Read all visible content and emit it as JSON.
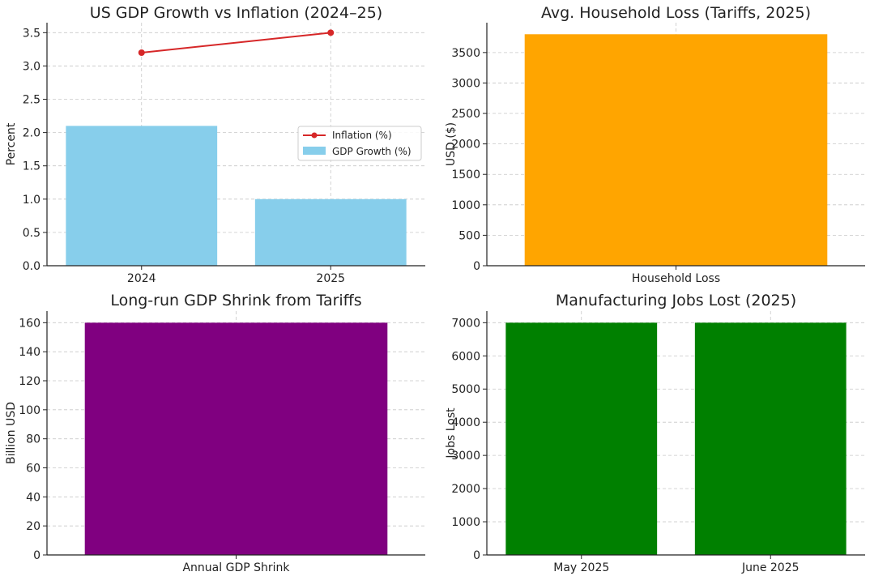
{
  "chart_data": [
    {
      "type": "bar+line",
      "title": "US GDP Growth vs Inflation (2024–25)",
      "xlabel": "",
      "ylabel": "Percent",
      "ylim": [
        0,
        3.65
      ],
      "yticks": [
        0.0,
        0.5,
        1.0,
        1.5,
        2.0,
        2.5,
        3.0,
        3.5
      ],
      "ytick_labels": [
        "0.0",
        "0.5",
        "1.0",
        "1.5",
        "2.0",
        "2.5",
        "3.0",
        "3.5"
      ],
      "categories": [
        "2024",
        "2025"
      ],
      "series": [
        {
          "name": "GDP Growth (%)",
          "kind": "bar",
          "values": [
            2.1,
            1.0
          ],
          "color": "#87CEEB"
        },
        {
          "name": "Inflation (%)",
          "kind": "line",
          "values": [
            3.2,
            3.5
          ],
          "color": "#d62728"
        }
      ],
      "legend": [
        "Inflation (%)",
        "GDP Growth (%)"
      ],
      "legend_position": "center-right",
      "grid": true
    },
    {
      "type": "bar",
      "title": "Avg. Household Loss (Tariffs, 2025)",
      "xlabel": "",
      "ylabel": "USD ($)",
      "ylim": [
        0,
        3990
      ],
      "yticks": [
        0,
        500,
        1000,
        1500,
        2000,
        2500,
        3000,
        3500
      ],
      "ytick_labels": [
        "0",
        "500",
        "1000",
        "1500",
        "2000",
        "2500",
        "3000",
        "3500"
      ],
      "categories": [
        "Household Loss"
      ],
      "values": [
        3800
      ],
      "color": "#FFA500",
      "grid": true
    },
    {
      "type": "bar",
      "title": "Long-run GDP Shrink from Tariffs",
      "xlabel": "",
      "ylabel": "Billion USD",
      "ylim": [
        0,
        168
      ],
      "yticks": [
        0,
        20,
        40,
        60,
        80,
        100,
        120,
        140,
        160
      ],
      "ytick_labels": [
        "0",
        "20",
        "40",
        "60",
        "80",
        "100",
        "120",
        "140",
        "160"
      ],
      "categories": [
        "Annual GDP Shrink"
      ],
      "values": [
        160
      ],
      "color": "#800080",
      "grid": true
    },
    {
      "type": "bar",
      "title": "Manufacturing Jobs Lost (2025)",
      "xlabel": "",
      "ylabel": "Jobs Lost",
      "ylim": [
        0,
        7350
      ],
      "yticks": [
        0,
        1000,
        2000,
        3000,
        4000,
        5000,
        6000,
        7000
      ],
      "ytick_labels": [
        "0",
        "1000",
        "2000",
        "3000",
        "4000",
        "5000",
        "6000",
        "7000"
      ],
      "categories": [
        "May 2025",
        "June 2025"
      ],
      "values": [
        7000,
        7000
      ],
      "color": "#008000",
      "grid": true
    }
  ]
}
